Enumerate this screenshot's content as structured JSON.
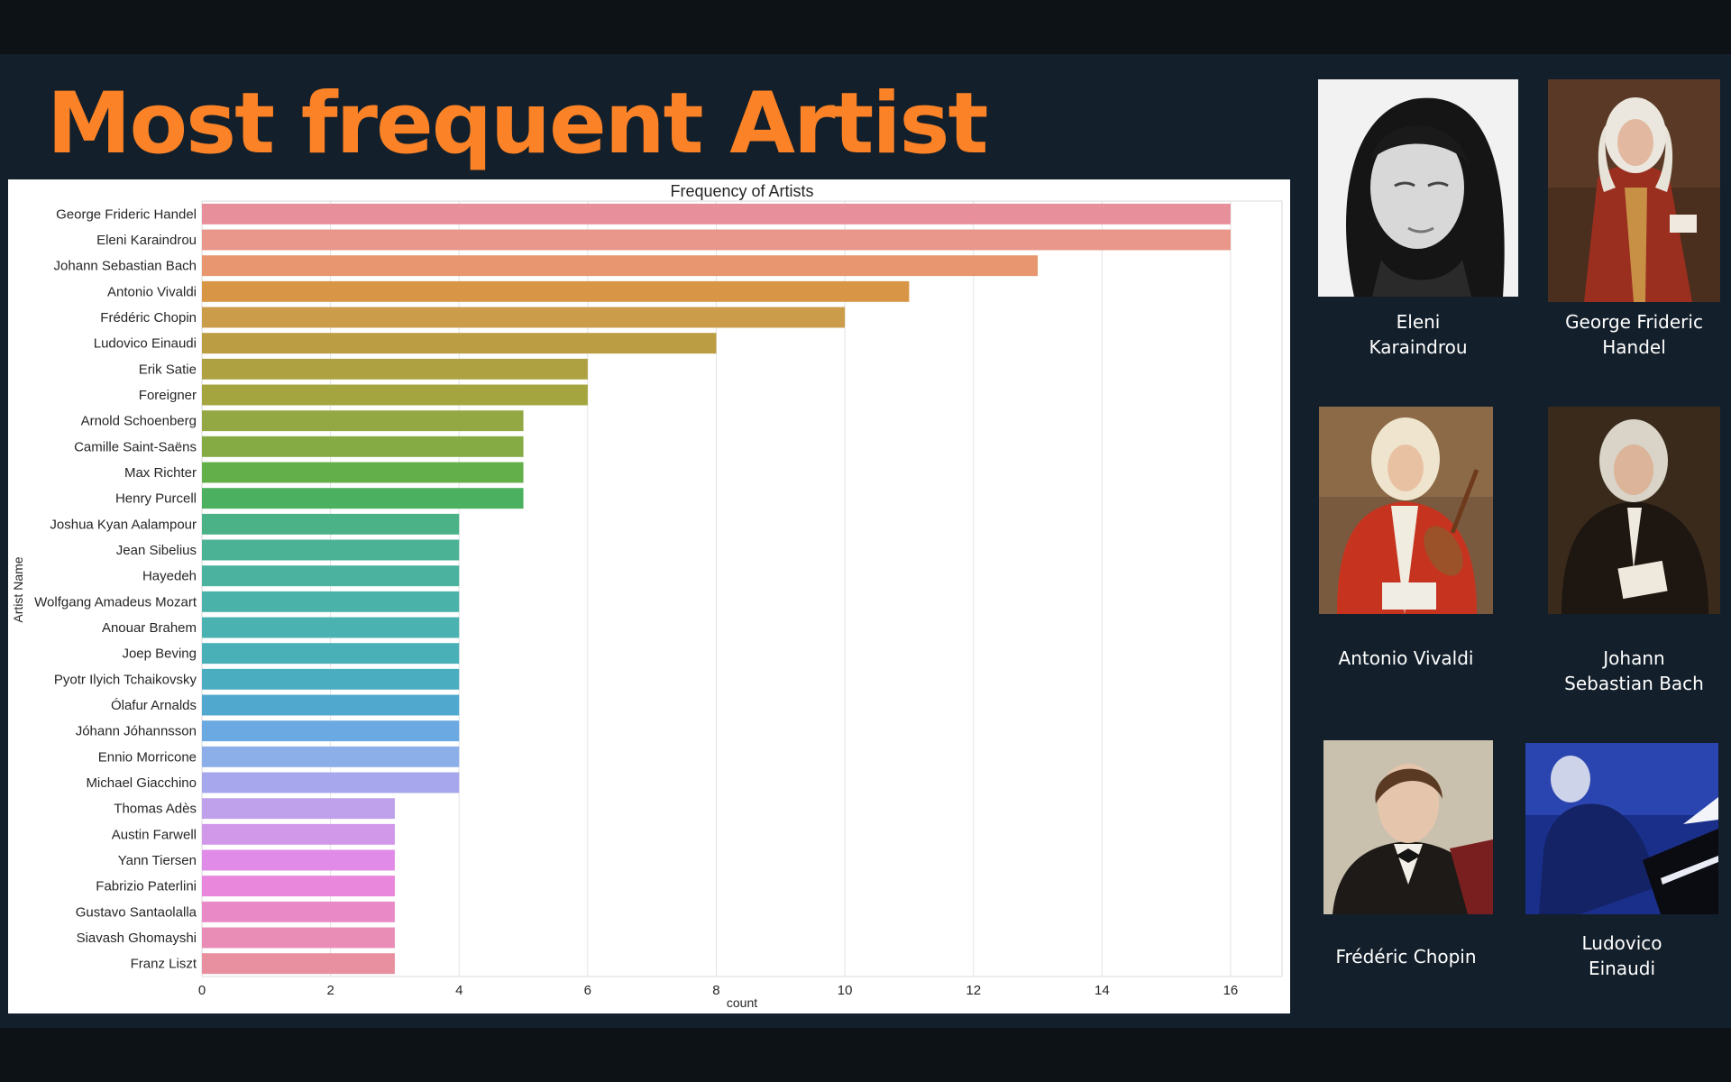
{
  "header": {
    "title": "Most frequent Artist"
  },
  "chart_data": {
    "type": "bar",
    "orientation": "horizontal",
    "title": "Frequency of Artists",
    "xlabel": "count",
    "ylabel": "Artist Name",
    "xlim": [
      0,
      16.8
    ],
    "xticks": [
      0,
      2,
      4,
      6,
      8,
      10,
      12,
      14,
      16
    ],
    "grid": true,
    "categories": [
      "George Frideric Handel",
      "Eleni Karaindrou",
      "Johann Sebastian Bach",
      "Antonio Vivaldi",
      "Frédéric Chopin",
      "Ludovico Einaudi",
      "Erik Satie",
      "Foreigner",
      "Arnold Schoenberg",
      "Camille Saint-Saëns",
      "Max Richter",
      "Henry Purcell",
      "Joshua Kyan Aalampour",
      "Jean Sibelius",
      "Hayedeh",
      "Wolfgang Amadeus Mozart",
      "Anouar Brahem",
      "Joep Beving",
      "Pyotr Ilyich Tchaikovsky",
      "Ólafur Arnalds",
      "Jóhann Jóhannsson",
      "Ennio Morricone",
      "Michael Giacchino",
      "Thomas Adès",
      "Austin Farwell",
      "Yann Tiersen",
      "Fabrizio Paterlini",
      "Gustavo Santaolalla",
      "Siavash Ghomayshi",
      "Franz Liszt"
    ],
    "values": [
      16,
      16,
      13,
      11,
      10,
      8,
      6,
      6,
      5,
      5,
      5,
      5,
      4,
      4,
      4,
      4,
      4,
      4,
      4,
      4,
      4,
      4,
      4,
      3,
      3,
      3,
      3,
      3,
      3,
      3
    ],
    "colors": [
      "#e7909b",
      "#e8978a",
      "#e7966f",
      "#d99546",
      "#cb9c4a",
      "#bb9e44",
      "#ada142",
      "#a4a53f",
      "#93a843",
      "#85ab44",
      "#63b04b",
      "#4bb05f",
      "#4bb287",
      "#4bb295",
      "#4bb2a0",
      "#4bb2aa",
      "#4bb2b2",
      "#4ab0b8",
      "#4aaec0",
      "#51a8cf",
      "#6aa9e2",
      "#8caee9",
      "#a6a7ec",
      "#bfa0ea",
      "#d197e9",
      "#e08be7",
      "#e887dc",
      "#e98ac7",
      "#e98db6",
      "#e8909f"
    ]
  },
  "gallery": [
    {
      "name": "Eleni\nKaraindrou",
      "icon": "eleni-karaindrou-portrait"
    },
    {
      "name": "George Frideric\nHandel",
      "icon": "handel-portrait"
    },
    {
      "name": "Antonio Vivaldi",
      "icon": "vivaldi-portrait"
    },
    {
      "name": "Johann\nSebastian Bach",
      "icon": "bach-portrait"
    },
    {
      "name": "Frédéric Chopin",
      "icon": "chopin-portrait"
    },
    {
      "name": "Ludovico\nEinaudi",
      "icon": "einaudi-portrait"
    }
  ]
}
